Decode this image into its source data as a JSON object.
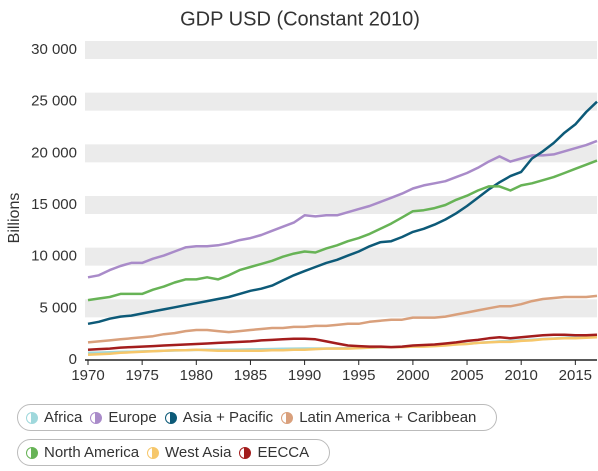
{
  "chart_data": {
    "type": "line",
    "title": "GDP USD (Constant 2010)",
    "y_label": "Billions",
    "x": [
      1970,
      1971,
      1972,
      1973,
      1974,
      1975,
      1976,
      1977,
      1978,
      1979,
      1980,
      1981,
      1982,
      1983,
      1984,
      1985,
      1986,
      1987,
      1988,
      1989,
      1990,
      1991,
      1992,
      1993,
      1994,
      1995,
      1996,
      1997,
      1998,
      1999,
      2000,
      2001,
      2002,
      2003,
      2004,
      2005,
      2006,
      2007,
      2008,
      2009,
      2010,
      2011,
      2012,
      2013,
      2014,
      2015,
      2016,
      2017
    ],
    "xlim": [
      1970,
      2017
    ],
    "xticks": [
      1970,
      1975,
      1980,
      1985,
      1990,
      1995,
      2000,
      2005,
      2010,
      2015
    ],
    "ylim": [
      0,
      30000
    ],
    "yticks": [
      0,
      {
        "value": 5000,
        "label": "5 000"
      },
      {
        "value": 10000,
        "label": "10 000"
      },
      {
        "value": 15000,
        "label": "15 000"
      },
      {
        "value": 20000,
        "label": "20 000"
      },
      {
        "value": 25000,
        "label": "25 000"
      },
      {
        "value": 30000,
        "label": "30 000"
      }
    ],
    "grid": true,
    "legend": "bottom",
    "series": [
      {
        "name": "Africa",
        "color": "#9fd8dc",
        "values": [
          700,
          720,
          750,
          780,
          800,
          830,
          860,
          890,
          920,
          950,
          980,
          990,
          1000,
          1000,
          1010,
          1030,
          1040,
          1060,
          1080,
          1100,
          1110,
          1110,
          1110,
          1120,
          1130,
          1160,
          1190,
          1220,
          1250,
          1280,
          1320,
          1360,
          1400,
          1450,
          1510,
          1580,
          1650,
          1720,
          1800,
          1850,
          1920,
          1960,
          2030,
          2080,
          2150,
          2200,
          2240,
          2300
        ]
      },
      {
        "name": "Europe",
        "color": "#a98bc9",
        "values": [
          8000,
          8200,
          8700,
          9100,
          9400,
          9400,
          9800,
          10100,
          10500,
          10900,
          11000,
          11000,
          11100,
          11300,
          11600,
          11800,
          12100,
          12500,
          12900,
          13300,
          14000,
          13900,
          14000,
          14000,
          14300,
          14600,
          14900,
          15300,
          15700,
          16100,
          16600,
          16900,
          17100,
          17300,
          17700,
          18100,
          18600,
          19200,
          19700,
          19200,
          19500,
          19800,
          19800,
          19900,
          20200,
          20500,
          20800,
          21200
        ]
      },
      {
        "name": "Asia + Pacific",
        "color": "#0d5a78",
        "values": [
          3500,
          3700,
          4000,
          4200,
          4300,
          4500,
          4700,
          4900,
          5100,
          5300,
          5500,
          5700,
          5900,
          6100,
          6400,
          6700,
          6900,
          7200,
          7700,
          8200,
          8600,
          9000,
          9400,
          9700,
          10100,
          10500,
          11000,
          11400,
          11500,
          11900,
          12400,
          12700,
          13100,
          13600,
          14200,
          14900,
          15700,
          16500,
          17200,
          17800,
          18200,
          19500,
          20200,
          21000,
          22000,
          22800,
          24000,
          25000
        ]
      },
      {
        "name": "Latin America + Caribbean",
        "color": "#d9a07c",
        "values": [
          1700,
          1800,
          1900,
          2000,
          2100,
          2200,
          2300,
          2500,
          2600,
          2800,
          2900,
          2900,
          2800,
          2700,
          2800,
          2900,
          3000,
          3100,
          3100,
          3200,
          3200,
          3300,
          3300,
          3400,
          3500,
          3500,
          3700,
          3800,
          3900,
          3900,
          4100,
          4100,
          4100,
          4200,
          4400,
          4600,
          4800,
          5000,
          5200,
          5200,
          5400,
          5700,
          5900,
          6000,
          6100,
          6100,
          6100,
          6200
        ]
      },
      {
        "name": "North America",
        "color": "#67b356",
        "values": [
          5800,
          5950,
          6100,
          6400,
          6400,
          6400,
          6800,
          7100,
          7500,
          7800,
          7800,
          8000,
          7800,
          8200,
          8700,
          9000,
          9300,
          9600,
          10000,
          10300,
          10500,
          10400,
          10800,
          11100,
          11500,
          11800,
          12200,
          12700,
          13200,
          13800,
          14400,
          14500,
          14700,
          15000,
          15500,
          15900,
          16400,
          16800,
          16800,
          16400,
          16900,
          17100,
          17400,
          17700,
          18100,
          18500,
          18900,
          19300
        ]
      },
      {
        "name": "West Asia",
        "color": "#f6c76b",
        "values": [
          500,
          550,
          600,
          700,
          750,
          800,
          850,
          900,
          950,
          950,
          1000,
          950,
          900,
          900,
          900,
          900,
          900,
          950,
          950,
          1000,
          1000,
          1050,
          1100,
          1100,
          1100,
          1150,
          1200,
          1250,
          1250,
          1250,
          1300,
          1300,
          1350,
          1400,
          1500,
          1550,
          1650,
          1700,
          1750,
          1750,
          1850,
          1900,
          2000,
          2050,
          2100,
          2100,
          2150,
          2200
        ]
      },
      {
        "name": "EECCA",
        "color": "#a31d1d",
        "values": [
          1000,
          1050,
          1100,
          1200,
          1250,
          1300,
          1350,
          1400,
          1450,
          1500,
          1550,
          1600,
          1650,
          1700,
          1750,
          1800,
          1900,
          1950,
          2000,
          2050,
          2050,
          2000,
          1800,
          1600,
          1400,
          1350,
          1300,
          1300,
          1250,
          1300,
          1400,
          1450,
          1500,
          1600,
          1700,
          1850,
          1950,
          2100,
          2200,
          2100,
          2200,
          2300,
          2400,
          2450,
          2450,
          2400,
          2400,
          2450
        ]
      }
    ]
  }
}
